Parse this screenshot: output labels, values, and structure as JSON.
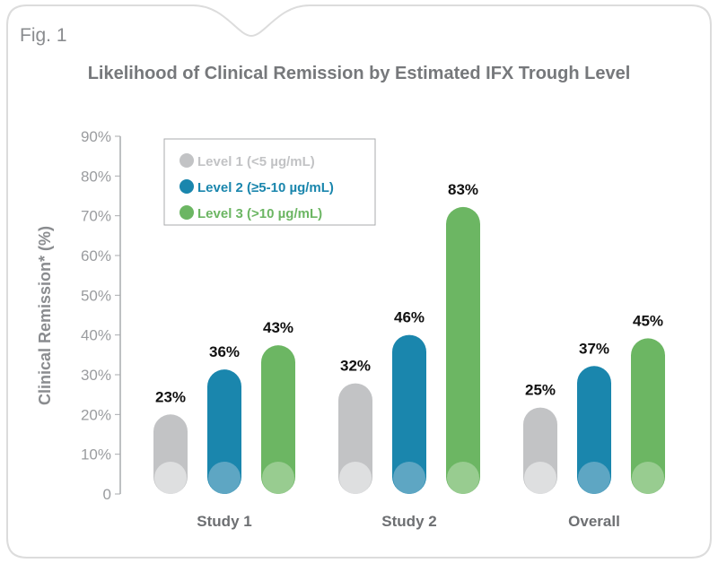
{
  "figure_label": "Fig. 1",
  "chart_data": {
    "type": "bar",
    "title": "Likelihood of Clinical Remission by Estimated IFX Trough Level",
    "xlabel": "",
    "ylabel": "Clinical Remission* (%)",
    "ylim": [
      0,
      90
    ],
    "yticks": [
      "0",
      "10%",
      "20%",
      "30%",
      "40%",
      "50%",
      "60%",
      "70%",
      "80%",
      "90%"
    ],
    "categories": [
      "Study 1",
      "Study 2",
      "Overall"
    ],
    "legend_position": "top-left",
    "series": [
      {
        "name": "Level 1 (<5 µg/mL)",
        "color": "#c2c3c5",
        "values": [
          23,
          32,
          25
        ],
        "labels": [
          "23%",
          "32%",
          "25%"
        ]
      },
      {
        "name": "Level 2 (≥5-10 µg/mL)",
        "color": "#1a86ad",
        "values": [
          36,
          46,
          37
        ],
        "labels": [
          "36%",
          "46%",
          "37%"
        ]
      },
      {
        "name": "Level 3 (>10 µg/mL)",
        "color": "#6cb663",
        "values": [
          43,
          83,
          45
        ],
        "labels": [
          "43%",
          "83%",
          "45%"
        ]
      }
    ]
  }
}
